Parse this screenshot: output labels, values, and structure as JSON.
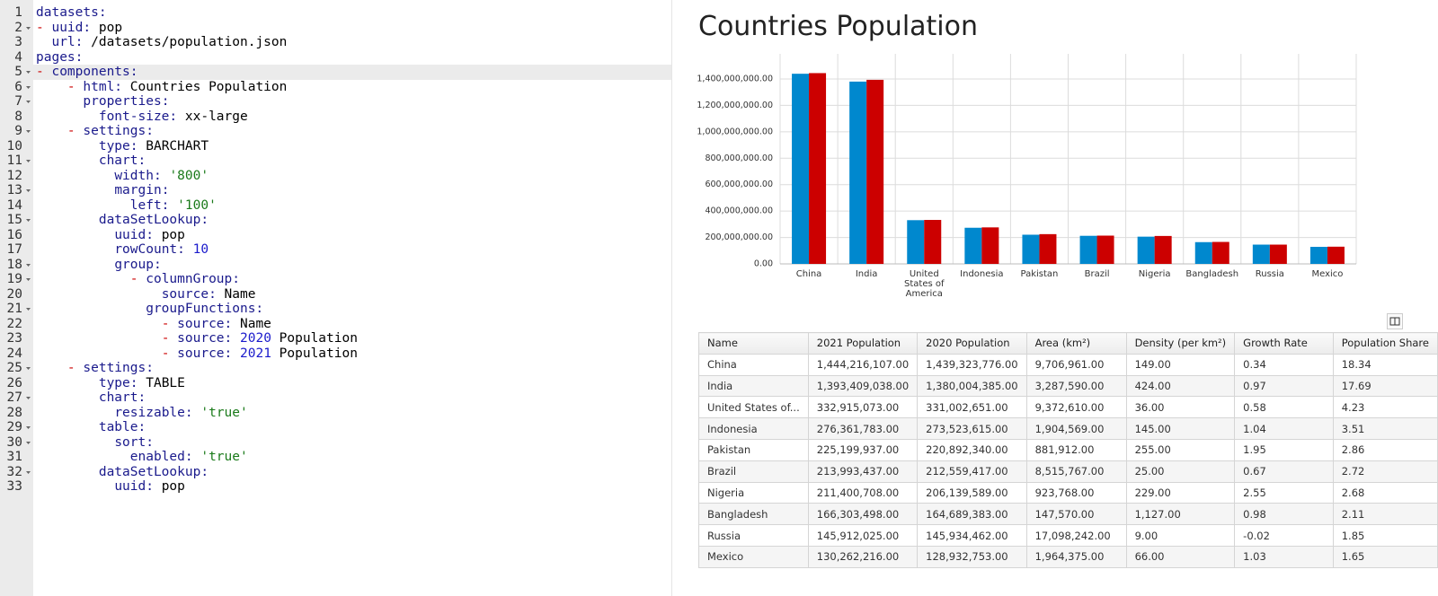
{
  "editor": {
    "highlight_line": 5,
    "lines": [
      {
        "n": 1,
        "fold": false,
        "tokens": [
          [
            "datasets:",
            "k"
          ]
        ]
      },
      {
        "n": 2,
        "fold": true,
        "tokens": [
          [
            "-",
            "d"
          ],
          [
            " ",
            "p"
          ],
          [
            "uuid:",
            "k"
          ],
          [
            " pop",
            "p"
          ]
        ]
      },
      {
        "n": 3,
        "fold": false,
        "tokens": [
          [
            "  ",
            "p"
          ],
          [
            "url:",
            "k"
          ],
          [
            " /datasets/population.json",
            "p"
          ]
        ]
      },
      {
        "n": 4,
        "fold": false,
        "tokens": [
          [
            "pages:",
            "k"
          ]
        ]
      },
      {
        "n": 5,
        "fold": true,
        "tokens": [
          [
            "-",
            "d"
          ],
          [
            " ",
            "p"
          ],
          [
            "components:",
            "k"
          ]
        ]
      },
      {
        "n": 6,
        "fold": true,
        "tokens": [
          [
            "    ",
            "p"
          ],
          [
            "-",
            "d"
          ],
          [
            " ",
            "p"
          ],
          [
            "html:",
            "k"
          ],
          [
            " Countries Population",
            "p"
          ]
        ]
      },
      {
        "n": 7,
        "fold": true,
        "tokens": [
          [
            "      ",
            "p"
          ],
          [
            "properties:",
            "k"
          ]
        ]
      },
      {
        "n": 8,
        "fold": false,
        "tokens": [
          [
            "        ",
            "p"
          ],
          [
            "font-size:",
            "k"
          ],
          [
            " xx-large",
            "p"
          ]
        ]
      },
      {
        "n": 9,
        "fold": true,
        "tokens": [
          [
            "    ",
            "p"
          ],
          [
            "-",
            "d"
          ],
          [
            " ",
            "p"
          ],
          [
            "settings:",
            "k"
          ]
        ]
      },
      {
        "n": 10,
        "fold": false,
        "tokens": [
          [
            "        ",
            "p"
          ],
          [
            "type:",
            "k"
          ],
          [
            " BARCHART",
            "p"
          ]
        ]
      },
      {
        "n": 11,
        "fold": true,
        "tokens": [
          [
            "        ",
            "p"
          ],
          [
            "chart:",
            "k"
          ]
        ]
      },
      {
        "n": 12,
        "fold": false,
        "tokens": [
          [
            "          ",
            "p"
          ],
          [
            "width:",
            "k"
          ],
          [
            " ",
            "p"
          ],
          [
            "'800'",
            "s"
          ]
        ]
      },
      {
        "n": 13,
        "fold": true,
        "tokens": [
          [
            "          ",
            "p"
          ],
          [
            "margin:",
            "k"
          ]
        ]
      },
      {
        "n": 14,
        "fold": false,
        "tokens": [
          [
            "            ",
            "p"
          ],
          [
            "left:",
            "k"
          ],
          [
            " ",
            "p"
          ],
          [
            "'100'",
            "s"
          ]
        ]
      },
      {
        "n": 15,
        "fold": true,
        "tokens": [
          [
            "        ",
            "p"
          ],
          [
            "dataSetLookup:",
            "k"
          ]
        ]
      },
      {
        "n": 16,
        "fold": false,
        "tokens": [
          [
            "          ",
            "p"
          ],
          [
            "uuid:",
            "k"
          ],
          [
            " pop",
            "p"
          ]
        ]
      },
      {
        "n": 17,
        "fold": false,
        "tokens": [
          [
            "          ",
            "p"
          ],
          [
            "rowCount:",
            "k"
          ],
          [
            " ",
            "p"
          ],
          [
            "10",
            "n"
          ]
        ]
      },
      {
        "n": 18,
        "fold": true,
        "tokens": [
          [
            "          ",
            "p"
          ],
          [
            "group:",
            "k"
          ]
        ]
      },
      {
        "n": 19,
        "fold": true,
        "tokens": [
          [
            "            ",
            "p"
          ],
          [
            "-",
            "d"
          ],
          [
            " ",
            "p"
          ],
          [
            "columnGroup:",
            "k"
          ]
        ]
      },
      {
        "n": 20,
        "fold": false,
        "tokens": [
          [
            "                ",
            "p"
          ],
          [
            "source:",
            "k"
          ],
          [
            " Name",
            "p"
          ]
        ]
      },
      {
        "n": 21,
        "fold": true,
        "tokens": [
          [
            "              ",
            "p"
          ],
          [
            "groupFunctions:",
            "k"
          ]
        ]
      },
      {
        "n": 22,
        "fold": false,
        "tokens": [
          [
            "                ",
            "p"
          ],
          [
            "-",
            "d"
          ],
          [
            " ",
            "p"
          ],
          [
            "source:",
            "k"
          ],
          [
            " Name",
            "p"
          ]
        ]
      },
      {
        "n": 23,
        "fold": false,
        "tokens": [
          [
            "                ",
            "p"
          ],
          [
            "-",
            "d"
          ],
          [
            " ",
            "p"
          ],
          [
            "source:",
            "k"
          ],
          [
            " ",
            "p"
          ],
          [
            "2020",
            "n"
          ],
          [
            " Population",
            "p"
          ]
        ]
      },
      {
        "n": 24,
        "fold": false,
        "tokens": [
          [
            "                ",
            "p"
          ],
          [
            "-",
            "d"
          ],
          [
            " ",
            "p"
          ],
          [
            "source:",
            "k"
          ],
          [
            " ",
            "p"
          ],
          [
            "2021",
            "n"
          ],
          [
            " Population",
            "p"
          ]
        ]
      },
      {
        "n": 25,
        "fold": true,
        "tokens": [
          [
            "    ",
            "p"
          ],
          [
            "-",
            "d"
          ],
          [
            " ",
            "p"
          ],
          [
            "settings:",
            "k"
          ]
        ]
      },
      {
        "n": 26,
        "fold": false,
        "tokens": [
          [
            "        ",
            "p"
          ],
          [
            "type:",
            "k"
          ],
          [
            " TABLE",
            "p"
          ]
        ]
      },
      {
        "n": 27,
        "fold": true,
        "tokens": [
          [
            "        ",
            "p"
          ],
          [
            "chart:",
            "k"
          ]
        ]
      },
      {
        "n": 28,
        "fold": false,
        "tokens": [
          [
            "          ",
            "p"
          ],
          [
            "resizable:",
            "k"
          ],
          [
            " ",
            "p"
          ],
          [
            "'true'",
            "s"
          ]
        ]
      },
      {
        "n": 29,
        "fold": true,
        "tokens": [
          [
            "        ",
            "p"
          ],
          [
            "table:",
            "k"
          ]
        ]
      },
      {
        "n": 30,
        "fold": true,
        "tokens": [
          [
            "          ",
            "p"
          ],
          [
            "sort:",
            "k"
          ]
        ]
      },
      {
        "n": 31,
        "fold": false,
        "tokens": [
          [
            "            ",
            "p"
          ],
          [
            "enabled:",
            "k"
          ],
          [
            " ",
            "p"
          ],
          [
            "'true'",
            "s"
          ]
        ]
      },
      {
        "n": 32,
        "fold": true,
        "tokens": [
          [
            "        ",
            "p"
          ],
          [
            "dataSetLookup:",
            "k"
          ]
        ]
      },
      {
        "n": 33,
        "fold": false,
        "tokens": [
          [
            "          ",
            "p"
          ],
          [
            "uuid:",
            "k"
          ],
          [
            " pop",
            "p"
          ]
        ]
      }
    ]
  },
  "page": {
    "title": "Countries Population"
  },
  "chart_data": {
    "type": "bar",
    "categories": [
      "China",
      "India",
      "United States of America",
      "Indonesia",
      "Pakistan",
      "Brazil",
      "Nigeria",
      "Bangladesh",
      "Russia",
      "Mexico"
    ],
    "series": [
      {
        "color": "#0088ce",
        "values": [
          1439323776,
          1380004385,
          331002651,
          273523615,
          220892340,
          212559417,
          206139589,
          164689383,
          145934462,
          128932753
        ]
      },
      {
        "color": "#cc0000",
        "values": [
          1444216107,
          1393409038,
          332915073,
          276361783,
          225199937,
          213993437,
          211400708,
          166303498,
          145912025,
          130262216
        ]
      }
    ],
    "ylim": [
      0,
      1590000000
    ],
    "yticks": [
      {
        "value": 0,
        "label": "0.00"
      },
      {
        "value": 200000000,
        "label": "200,000,000.00"
      },
      {
        "value": 400000000,
        "label": "400,000,000.00"
      },
      {
        "value": 600000000,
        "label": "600,000,000.00"
      },
      {
        "value": 800000000,
        "label": "800,000,000.00"
      },
      {
        "value": 1000000000,
        "label": "1,000,000,000.00"
      },
      {
        "value": 1200000000,
        "label": "1,200,000,000.00"
      },
      {
        "value": 1400000000,
        "label": "1,400,000,000.00"
      }
    ],
    "grid": true
  },
  "table": {
    "columns": [
      "Name",
      "2021 Population",
      "2020 Population",
      "Area (km²)",
      "Density (per km²)",
      "Growth Rate",
      "Population Share"
    ],
    "rows": [
      [
        "China",
        "1,444,216,107.00",
        "1,439,323,776.00",
        "9,706,961.00",
        "149.00",
        "0.34",
        "18.34"
      ],
      [
        "India",
        "1,393,409,038.00",
        "1,380,004,385.00",
        "3,287,590.00",
        "424.00",
        "0.97",
        "17.69"
      ],
      [
        "United States of...",
        "332,915,073.00",
        "331,002,651.00",
        "9,372,610.00",
        "36.00",
        "0.58",
        "4.23"
      ],
      [
        "Indonesia",
        "276,361,783.00",
        "273,523,615.00",
        "1,904,569.00",
        "145.00",
        "1.04",
        "3.51"
      ],
      [
        "Pakistan",
        "225,199,937.00",
        "220,892,340.00",
        "881,912.00",
        "255.00",
        "1.95",
        "2.86"
      ],
      [
        "Brazil",
        "213,993,437.00",
        "212,559,417.00",
        "8,515,767.00",
        "25.00",
        "0.67",
        "2.72"
      ],
      [
        "Nigeria",
        "211,400,708.00",
        "206,139,589.00",
        "923,768.00",
        "229.00",
        "2.55",
        "2.68"
      ],
      [
        "Bangladesh",
        "166,303,498.00",
        "164,689,383.00",
        "147,570.00",
        "1,127.00",
        "0.98",
        "2.11"
      ],
      [
        "Russia",
        "145,912,025.00",
        "145,934,462.00",
        "17,098,242.00",
        "9.00",
        "-0.02",
        "1.85"
      ],
      [
        "Mexico",
        "130,262,216.00",
        "128,932,753.00",
        "1,964,375.00",
        "66.00",
        "1.03",
        "1.65"
      ]
    ]
  }
}
